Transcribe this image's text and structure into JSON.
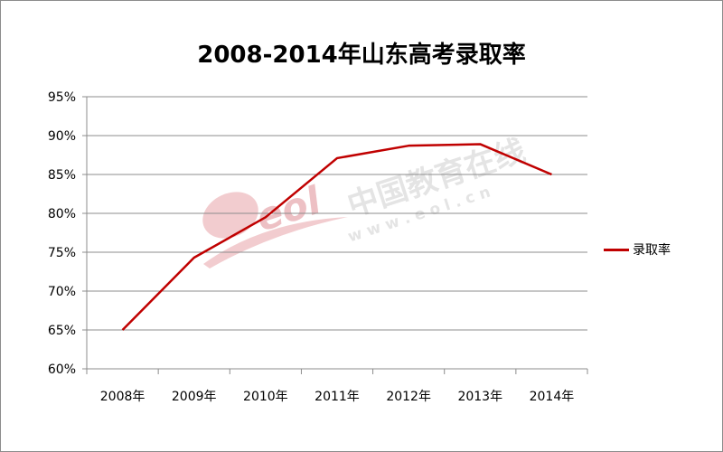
{
  "chart_data": {
    "type": "line",
    "title": "2008-2014年山东高考录取率",
    "categories": [
      "2008年",
      "2009年",
      "2010年",
      "2011年",
      "2012年",
      "2013年",
      "2014年"
    ],
    "series": [
      {
        "name": "录取率",
        "values": [
          65.0,
          74.3,
          79.5,
          87.1,
          88.7,
          88.9,
          85.0
        ]
      }
    ],
    "ylim": [
      60,
      95
    ],
    "yticks": [
      "60%",
      "65%",
      "70%",
      "75%",
      "80%",
      "85%",
      "90%",
      "95%"
    ],
    "grid": true,
    "legend_position": "right",
    "colors": {
      "line": "#c00000",
      "grid": "#8c8c8c",
      "axis": "#8c8c8c"
    }
  },
  "watermark": {
    "logo_text": "eol",
    "text": "中国教育在线",
    "url_text": "w w w . e o l . c n"
  }
}
